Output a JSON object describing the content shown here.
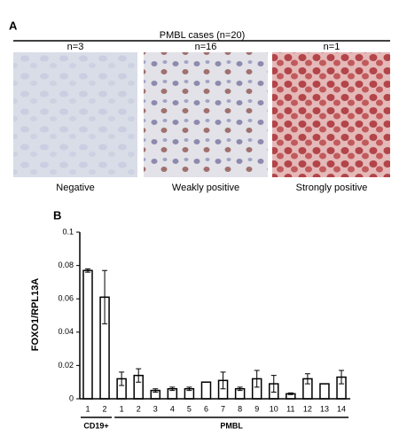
{
  "panel_a": {
    "label": "A",
    "title": "PMBL cases (n=20)",
    "columns": [
      {
        "count": "n=3",
        "caption": "Negative"
      },
      {
        "count": "n=16",
        "caption": "Weakly positive"
      },
      {
        "count": "n=1",
        "caption": "Strongly positive"
      }
    ]
  },
  "chart_data": {
    "type": "bar",
    "panel_label": "B",
    "y_label": "FOXO1/RPL13A",
    "ylim": [
      0,
      0.1
    ],
    "yticks": [
      0,
      0.02,
      0.04,
      0.06,
      0.08,
      0.1
    ],
    "color": "#ffffff",
    "groups": [
      {
        "name": "CD19+",
        "categories": [
          "1",
          "2"
        ],
        "values": [
          0.077,
          0.061
        ],
        "errors": [
          0.001,
          0.016
        ]
      },
      {
        "name": "PMBL",
        "categories": [
          "1",
          "2",
          "3",
          "4",
          "5",
          "6",
          "7",
          "8",
          "9",
          "10",
          "11",
          "12",
          "13",
          "14"
        ],
        "values": [
          0.012,
          0.014,
          0.005,
          0.006,
          0.006,
          0.01,
          0.011,
          0.006,
          0.012,
          0.009,
          0.003,
          0.012,
          0.009,
          0.013
        ],
        "errors": [
          0.004,
          0.004,
          0.001,
          0.001,
          0.001,
          0,
          0.005,
          0.001,
          0.005,
          0.005,
          0.0005,
          0.003,
          0,
          0.004
        ]
      }
    ]
  }
}
